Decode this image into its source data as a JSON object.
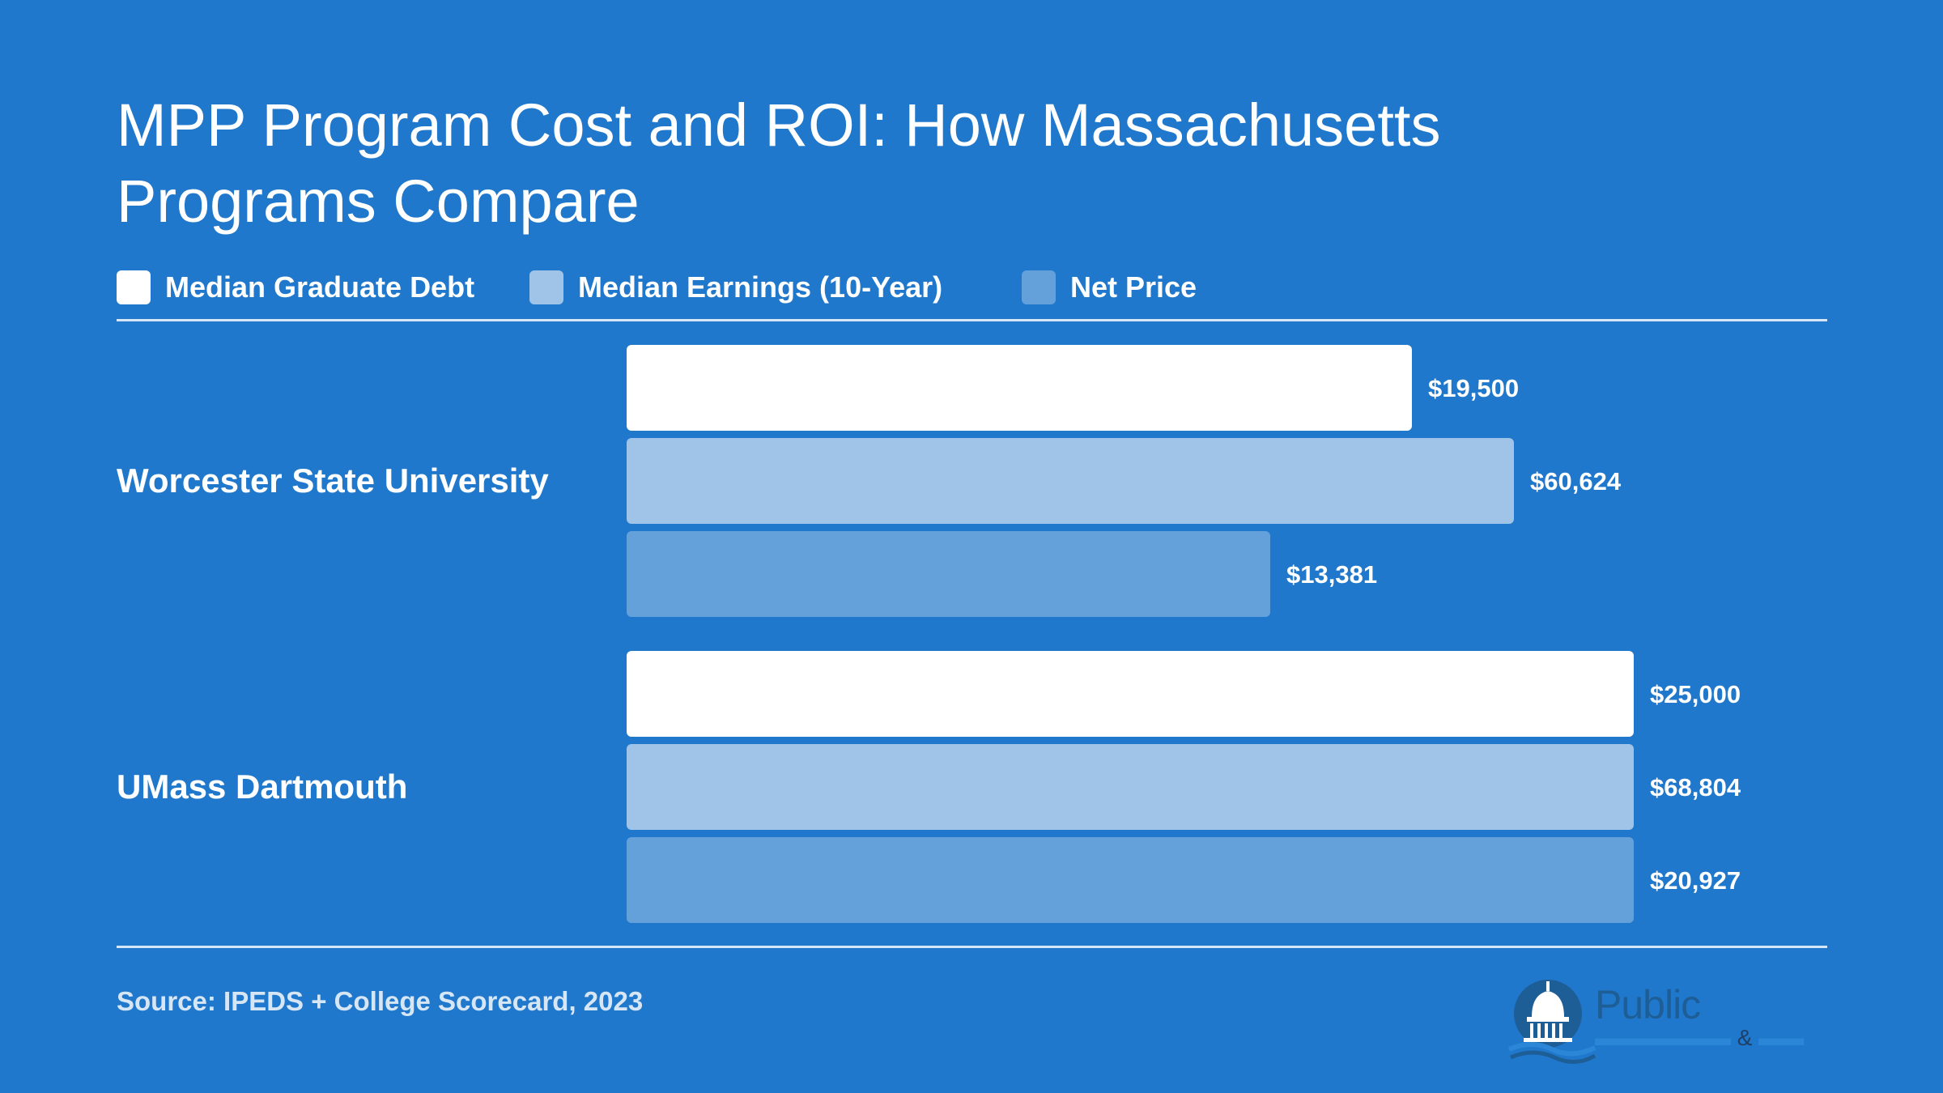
{
  "title": "MPP Program Cost and ROI: How Massachusetts Programs Compare",
  "legend": [
    {
      "label": "Median Graduate Debt",
      "color": "#FFFFFF"
    },
    {
      "label": "Median Earnings (10-Year)",
      "color": "#9FC4E8"
    },
    {
      "label": "Net Price",
      "color": "#64A1DB"
    }
  ],
  "source": "Source: IPEDS + College Scorecard, 2023",
  "logo": {
    "name": "Public",
    "amp": "&"
  },
  "colors": {
    "background": "#2078CC",
    "debt": "#FFFFFF",
    "earnings": "#9FC4E8",
    "net_price": "#64A1DB"
  },
  "chart_data": {
    "type": "bar",
    "orientation": "horizontal",
    "title": "MPP Program Cost and ROI: How Massachusetts Programs Compare",
    "categories": [
      "Worcester State University",
      "UMass Dartmouth"
    ],
    "series": [
      {
        "name": "Median Graduate Debt",
        "values": [
          19500,
          25000
        ],
        "labels": [
          "$19,500",
          "$25,000"
        ]
      },
      {
        "name": "Median Earnings (10-Year)",
        "values": [
          60624,
          68804
        ],
        "labels": [
          "$60,624",
          "$68,804"
        ]
      },
      {
        "name": "Net Price",
        "values": [
          13381,
          20927
        ],
        "labels": [
          "$13,381",
          "$20,927"
        ]
      }
    ],
    "scale": "each series scaled to its own maximum",
    "legend_position": "top-left",
    "grid": false
  }
}
